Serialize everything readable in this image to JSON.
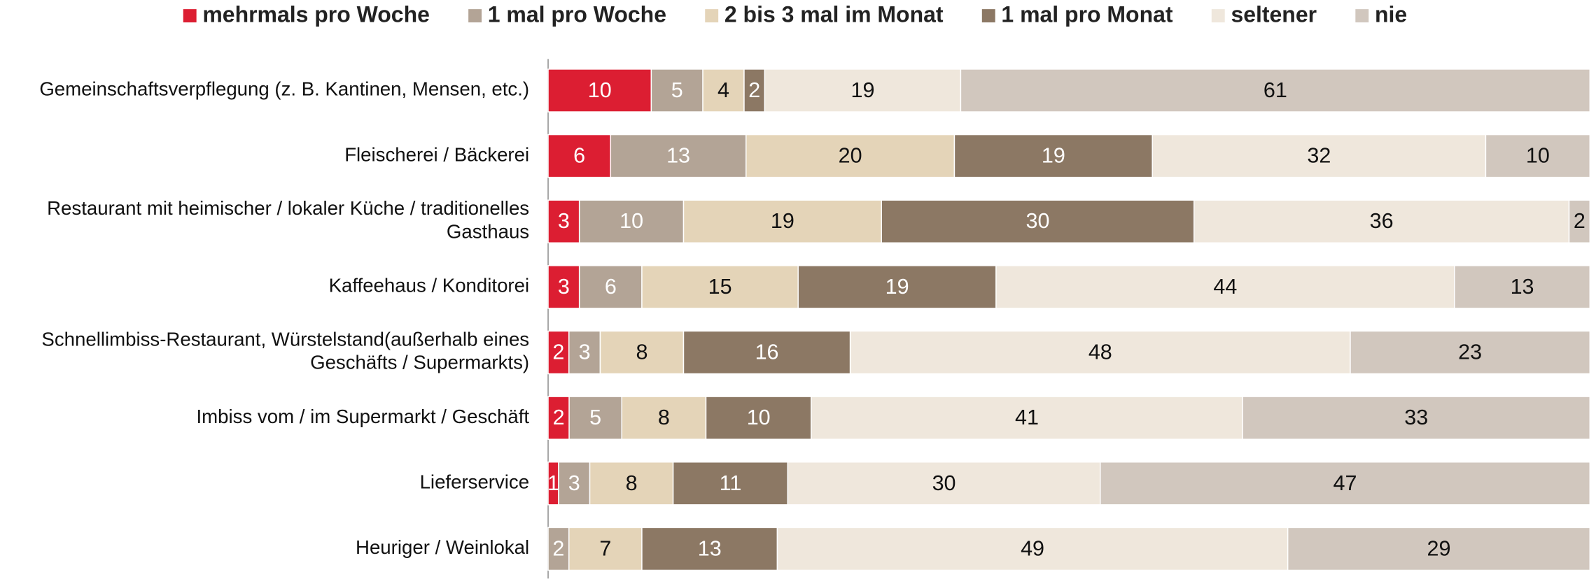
{
  "chart_data": {
    "type": "stacked-bar-horizontal",
    "categories": [
      "Gemeinschaftsverpflegung (z. B. Kantinen, Mensen, etc.)",
      "Fleischerei / Bäckerei",
      "Restaurant mit heimischer / lokaler Küche / traditionelles Gasthaus",
      "Kaffeehaus / Konditorei",
      "Schnellimbiss-Restaurant, Würstelstand(außerhalb eines Geschäfts / Supermarkts)",
      "Imbiss vom / im Supermarkt / Geschäft",
      "Lieferservice",
      "Heuriger / Weinlokal"
    ],
    "series": [
      {
        "name": "mehrmals pro Woche",
        "color": "#dc1e32",
        "values": [
          10,
          6,
          3,
          3,
          2,
          2,
          1,
          null
        ]
      },
      {
        "name": "1 mal pro Woche",
        "color": "#b3a496",
        "values": [
          5,
          13,
          10,
          6,
          3,
          5,
          3,
          2
        ]
      },
      {
        "name": "2 bis 3 mal im Monat",
        "color": "#e4d4b8",
        "values": [
          4,
          20,
          19,
          15,
          8,
          8,
          8,
          7
        ]
      },
      {
        "name": "1 mal pro Monat",
        "color": "#8c7864",
        "values": [
          2,
          19,
          30,
          19,
          16,
          10,
          11,
          13
        ]
      },
      {
        "name": "seltener",
        "color": "#efe7dc",
        "values": [
          19,
          32,
          36,
          44,
          48,
          41,
          30,
          49
        ]
      },
      {
        "name": "nie",
        "color": "#d1c7be",
        "values": [
          61,
          10,
          2,
          13,
          23,
          33,
          47,
          29
        ]
      }
    ],
    "legend": "top"
  }
}
